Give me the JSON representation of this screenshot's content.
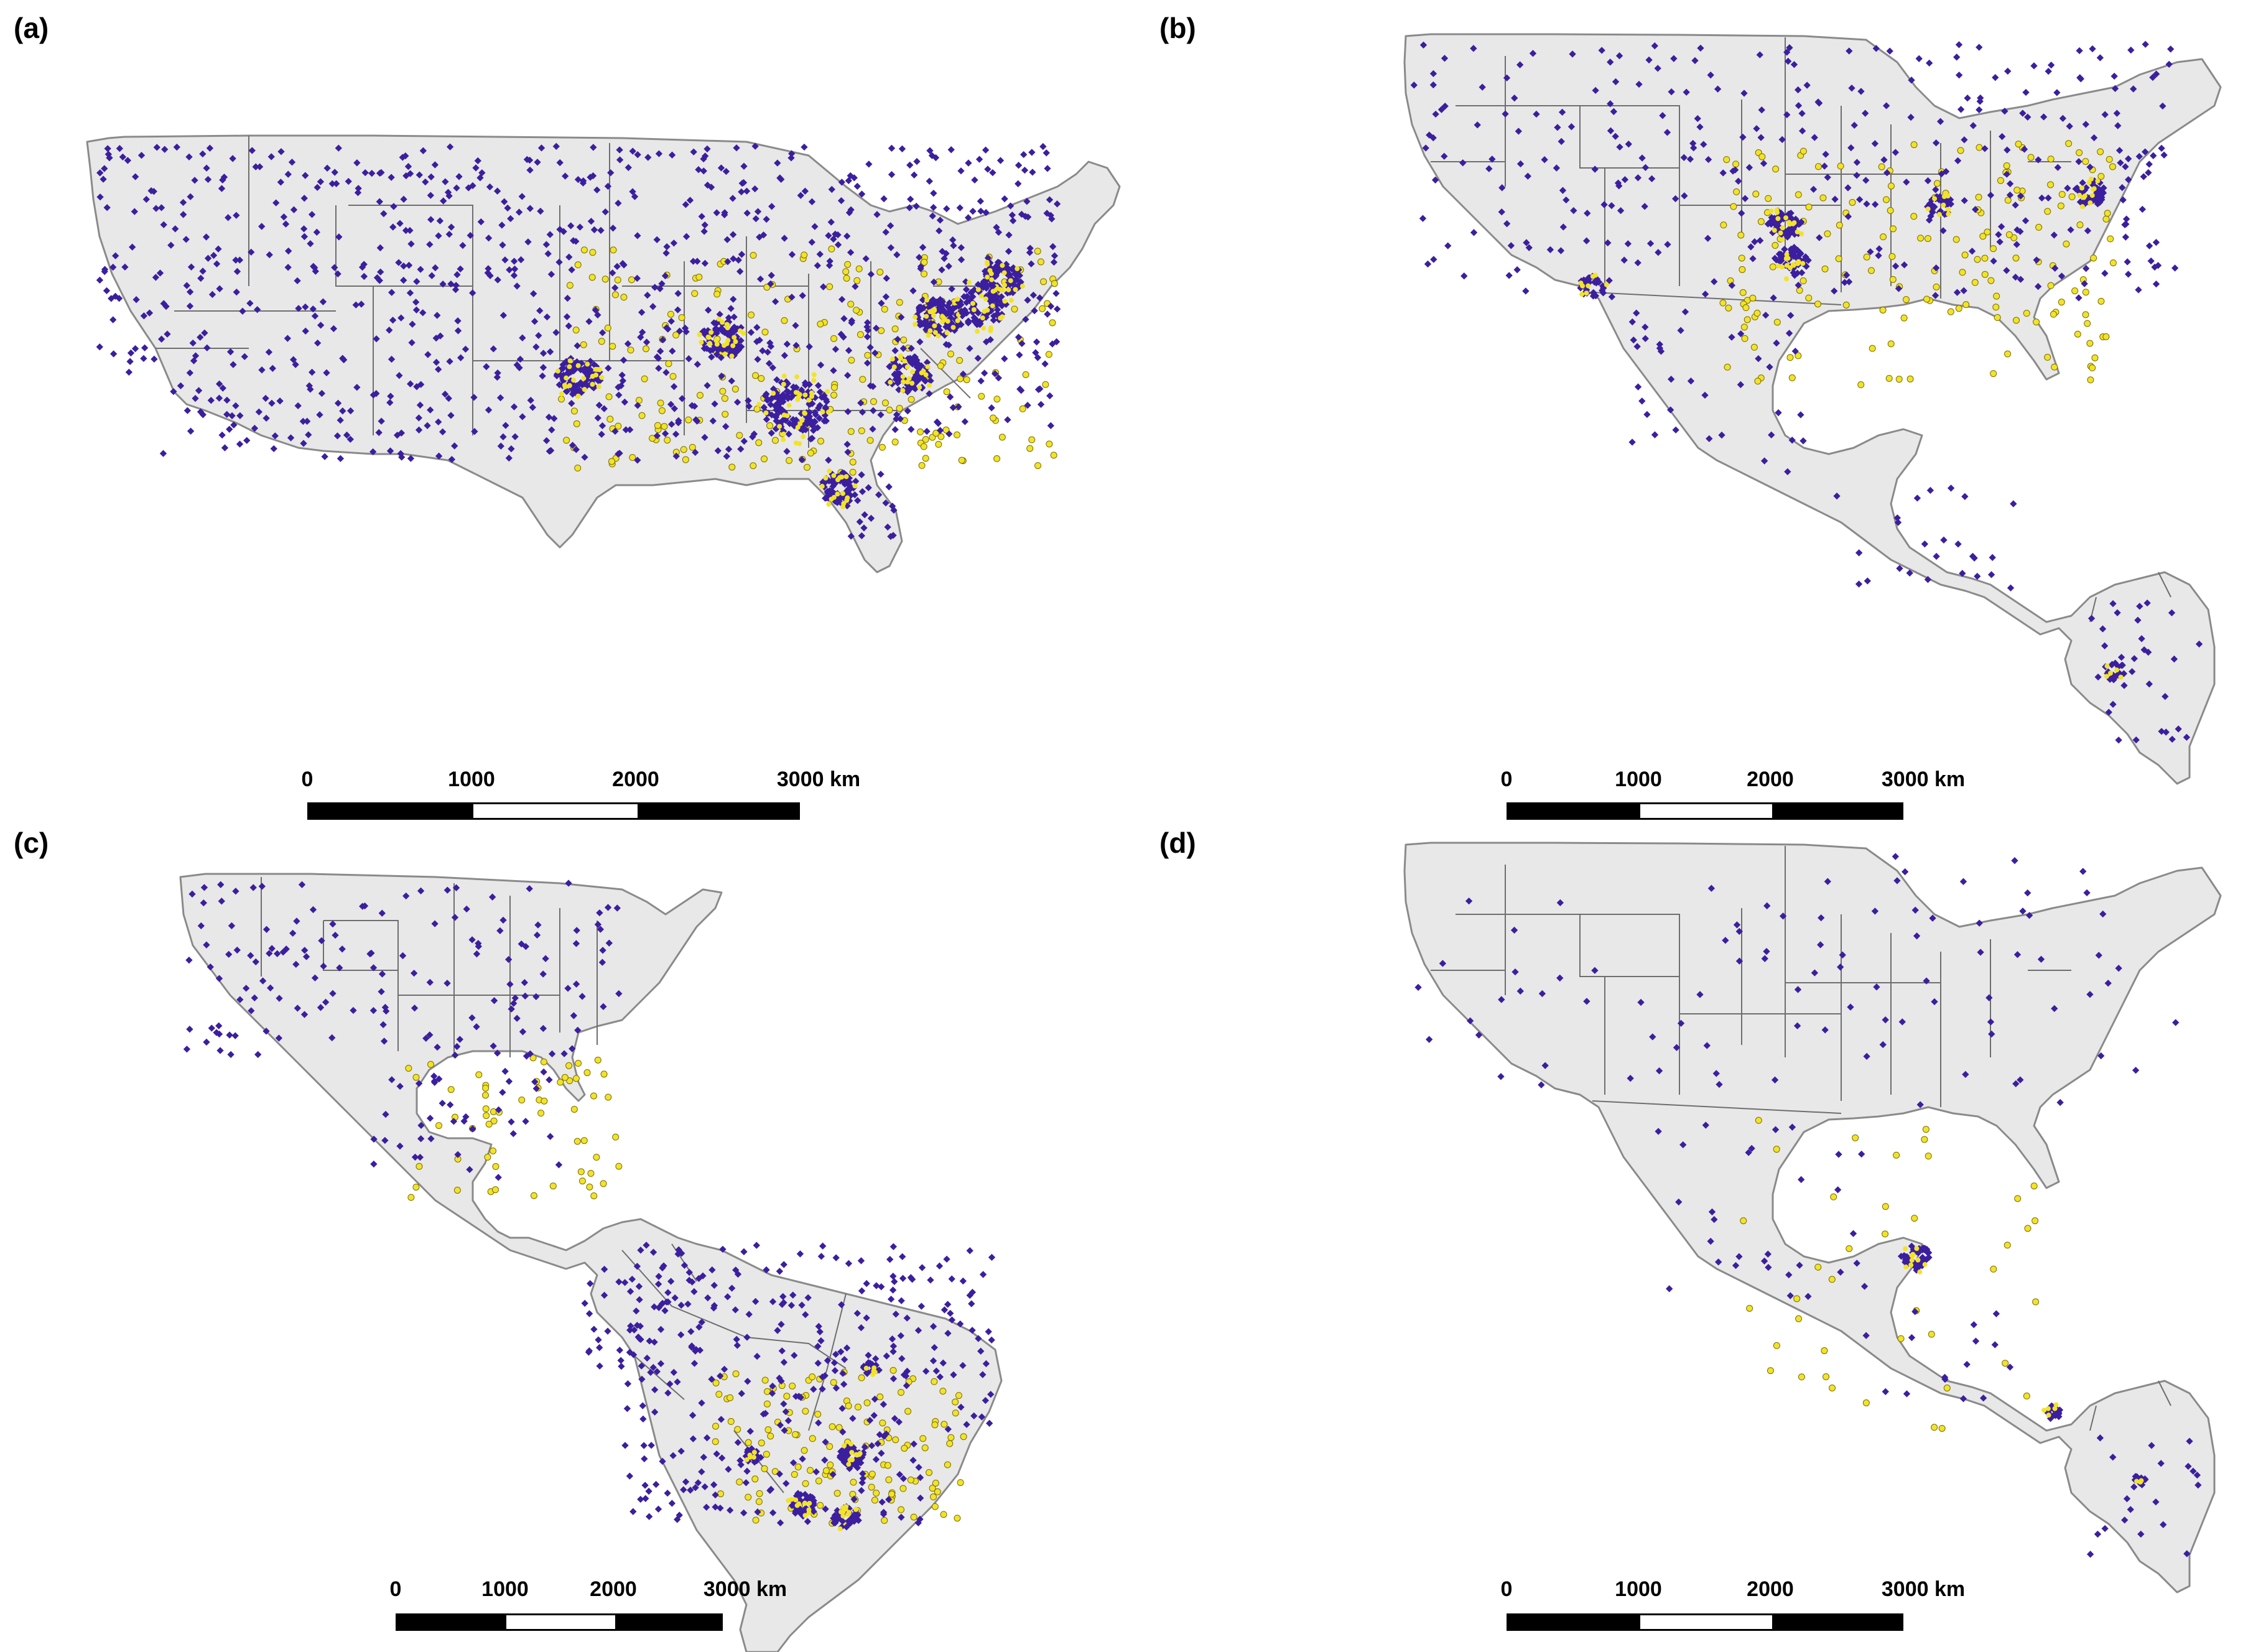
{
  "colors": {
    "land": "#e8e8e8",
    "border": "#6e6e6e",
    "coast": "#8a8a8a",
    "point_primary": "#3b1f9e",
    "point_secondary": "#f2e32a",
    "scale_dark": "#000000",
    "scale_light": "#ffffff"
  },
  "panels": [
    {
      "label": "(a)",
      "region": "United States",
      "scale": {
        "ticks": [
          "0",
          "1000",
          "2000",
          "3000 km"
        ]
      }
    },
    {
      "label": "(b)",
      "region": "United States, Mexico, Central America, Colombia",
      "scale": {
        "ticks": [
          "0",
          "1000",
          "2000",
          "3000 km"
        ]
      }
    },
    {
      "label": "(c)",
      "region": "Americas incl. Brazil",
      "scale": {
        "ticks": [
          "0",
          "1000",
          "2000",
          "3000 km"
        ]
      }
    },
    {
      "label": "(d)",
      "region": "United States, Mexico, Central America, Colombia",
      "scale": {
        "ticks": [
          "0",
          "1000",
          "2000",
          "3000 km"
        ]
      }
    }
  ]
}
